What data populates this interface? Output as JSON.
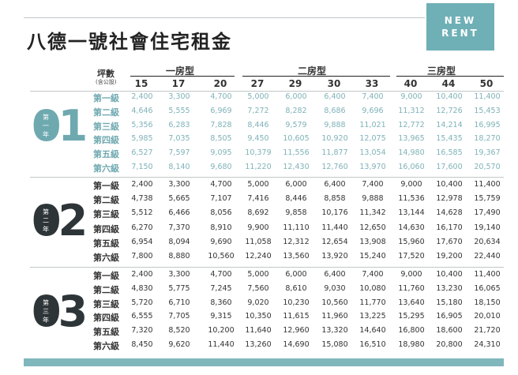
{
  "header": {
    "badge_line1": "NEW",
    "badge_line2": "RENT",
    "title": "八德一號社會住宅租金"
  },
  "columns": {
    "ping_label": "坪數",
    "ping_sub": "(含公設)",
    "groups": [
      "一房型",
      "二房型",
      "三房型"
    ],
    "sizes": [
      "15",
      "17",
      "20",
      "27",
      "29",
      "30",
      "33",
      "40",
      "44",
      "50"
    ]
  },
  "colors": {
    "accent": "#6fb0b6",
    "teal_text": "#7fb2b8",
    "dark": "#2e3538"
  },
  "sections": [
    {
      "num": "01",
      "year": [
        "第",
        "一",
        "年"
      ],
      "rows": [
        {
          "level": "第一級",
          "values": [
            "2,400",
            "3,300",
            "4,700",
            "5,000",
            "6,000",
            "6,400",
            "7,400",
            "9,000",
            "10,400",
            "11,400"
          ]
        },
        {
          "level": "第二級",
          "values": [
            "4,646",
            "5,555",
            "6,969",
            "7,272",
            "8,282",
            "8,686",
            "9,696",
            "11,312",
            "12,726",
            "15,453"
          ]
        },
        {
          "level": "第三級",
          "values": [
            "5,356",
            "6,283",
            "7,828",
            "8,446",
            "9,579",
            "9,888",
            "11,021",
            "12,772",
            "14,214",
            "16,995"
          ]
        },
        {
          "level": "第四級",
          "values": [
            "5,985",
            "7,035",
            "8,505",
            "9,450",
            "10,605",
            "10,920",
            "12,075",
            "13,965",
            "15,435",
            "18,270"
          ]
        },
        {
          "level": "第五級",
          "values": [
            "6,527",
            "7,597",
            "9,095",
            "10,379",
            "11,556",
            "11,877",
            "13,054",
            "14,980",
            "16,585",
            "19,367"
          ]
        },
        {
          "level": "第六級",
          "values": [
            "7,150",
            "8,140",
            "9,680",
            "11,220",
            "12,430",
            "12,760",
            "13,970",
            "16,060",
            "17,600",
            "20,570"
          ]
        }
      ]
    },
    {
      "num": "02",
      "year": [
        "第",
        "二",
        "年"
      ],
      "rows": [
        {
          "level": "第一級",
          "values": [
            "2,400",
            "3,300",
            "4,700",
            "5,000",
            "6,000",
            "6,400",
            "7,400",
            "9,000",
            "10,400",
            "11,400"
          ]
        },
        {
          "level": "第二級",
          "values": [
            "4,738",
            "5,665",
            "7,107",
            "7,416",
            "8,446",
            "8,858",
            "9,888",
            "11,536",
            "12,978",
            "15,759"
          ]
        },
        {
          "level": "第三級",
          "values": [
            "5,512",
            "6,466",
            "8,056",
            "8,692",
            "9,858",
            "10,176",
            "11,342",
            "13,144",
            "14,628",
            "17,490"
          ]
        },
        {
          "level": "第四級",
          "values": [
            "6,270",
            "7,370",
            "8,910",
            "9,900",
            "11,110",
            "11,440",
            "12,650",
            "14,630",
            "16,170",
            "19,140"
          ]
        },
        {
          "level": "第五級",
          "values": [
            "6,954",
            "8,094",
            "9,690",
            "11,058",
            "12,312",
            "12,654",
            "13,908",
            "15,960",
            "17,670",
            "20,634"
          ]
        },
        {
          "level": "第六級",
          "values": [
            "7,800",
            "8,880",
            "10,560",
            "12,240",
            "13,560",
            "13,920",
            "15,240",
            "17,520",
            "19,200",
            "22,440"
          ]
        }
      ]
    },
    {
      "num": "03",
      "year": [
        "第",
        "三",
        "年"
      ],
      "rows": [
        {
          "level": "第一級",
          "values": [
            "2,400",
            "3,300",
            "4,700",
            "5,000",
            "6,000",
            "6,400",
            "7,400",
            "9,000",
            "10,400",
            "11,400"
          ]
        },
        {
          "level": "第二級",
          "values": [
            "4,830",
            "5,775",
            "7,245",
            "7,560",
            "8,610",
            "9,030",
            "10,080",
            "11,760",
            "13,230",
            "16,065"
          ]
        },
        {
          "level": "第三級",
          "values": [
            "5,720",
            "6,710",
            "8,360",
            "9,020",
            "10,230",
            "10,560",
            "11,770",
            "13,640",
            "15,180",
            "18,150"
          ]
        },
        {
          "level": "第四級",
          "values": [
            "6,555",
            "7,705",
            "9,315",
            "10,350",
            "11,615",
            "11,960",
            "13,225",
            "15,295",
            "16,905",
            "20,010"
          ]
        },
        {
          "level": "第五級",
          "values": [
            "7,320",
            "8,520",
            "10,200",
            "11,640",
            "12,960",
            "13,320",
            "14,640",
            "16,800",
            "18,600",
            "21,720"
          ]
        },
        {
          "level": "第六級",
          "values": [
            "8,450",
            "9,620",
            "11,440",
            "13,260",
            "14,690",
            "15,080",
            "16,510",
            "18,980",
            "20,800",
            "24,310"
          ]
        }
      ]
    }
  ]
}
